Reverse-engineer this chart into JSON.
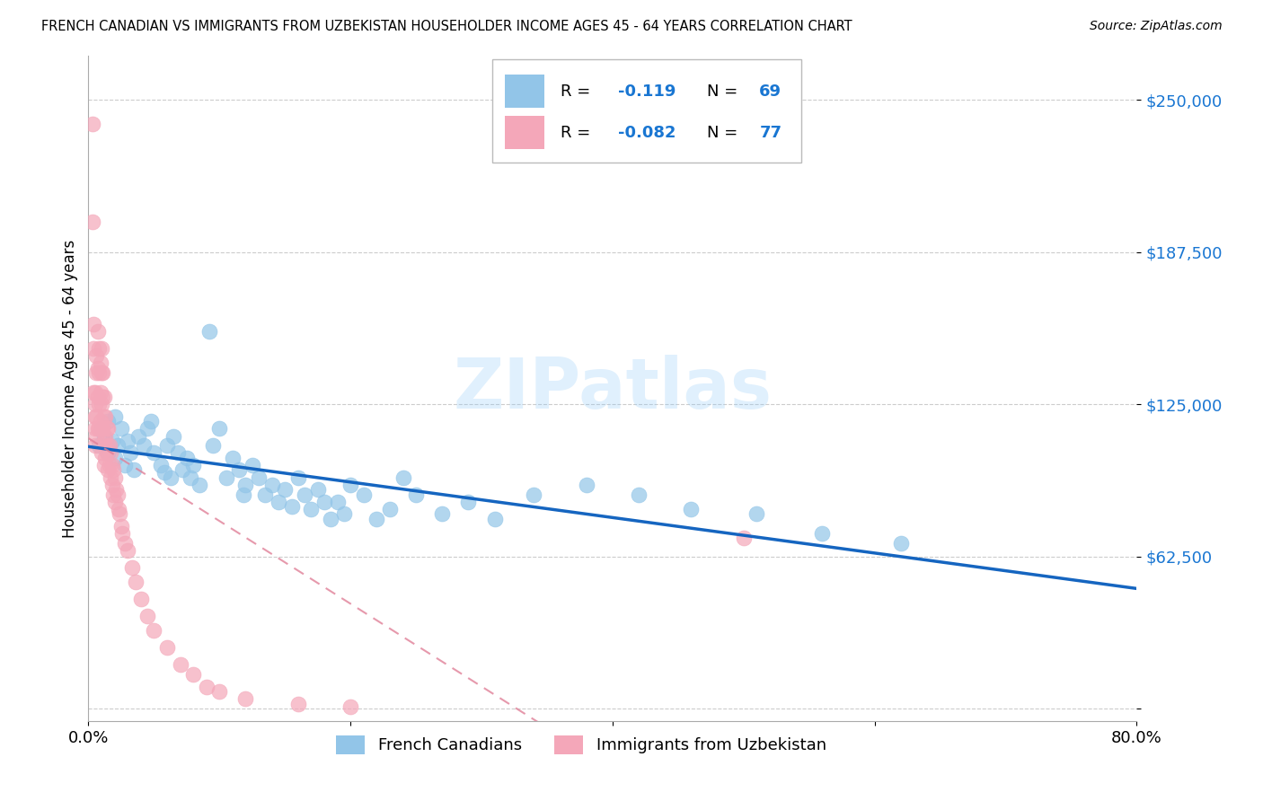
{
  "title": "FRENCH CANADIAN VS IMMIGRANTS FROM UZBEKISTAN HOUSEHOLDER INCOME AGES 45 - 64 YEARS CORRELATION CHART",
  "source": "Source: ZipAtlas.com",
  "ylabel": "Householder Income Ages 45 - 64 years",
  "y_ticks": [
    0,
    62500,
    125000,
    187500,
    250000
  ],
  "y_tick_labels": [
    "",
    "$62,500",
    "$125,000",
    "$187,500",
    "$250,000"
  ],
  "x_min": 0.0,
  "x_max": 0.8,
  "y_min": -5000,
  "y_max": 268000,
  "blue_color": "#92c5e8",
  "pink_color": "#f4a7b9",
  "line_blue": "#1565C0",
  "line_pink": "#e08098",
  "watermark": "ZIPatlas",
  "fc_x": [
    0.008,
    0.01,
    0.012,
    0.015,
    0.015,
    0.018,
    0.02,
    0.02,
    0.022,
    0.025,
    0.028,
    0.03,
    0.032,
    0.035,
    0.038,
    0.042,
    0.045,
    0.048,
    0.05,
    0.055,
    0.058,
    0.06,
    0.063,
    0.065,
    0.068,
    0.072,
    0.075,
    0.078,
    0.08,
    0.085,
    0.092,
    0.095,
    0.1,
    0.105,
    0.11,
    0.115,
    0.118,
    0.12,
    0.125,
    0.13,
    0.135,
    0.14,
    0.145,
    0.15,
    0.155,
    0.16,
    0.165,
    0.17,
    0.175,
    0.18,
    0.185,
    0.19,
    0.195,
    0.2,
    0.21,
    0.22,
    0.23,
    0.24,
    0.25,
    0.27,
    0.29,
    0.31,
    0.34,
    0.38,
    0.42,
    0.46,
    0.51,
    0.56,
    0.62
  ],
  "fc_y": [
    108000,
    115000,
    112000,
    105000,
    118000,
    110000,
    103000,
    120000,
    108000,
    115000,
    100000,
    110000,
    105000,
    98000,
    112000,
    108000,
    115000,
    118000,
    105000,
    100000,
    97000,
    108000,
    95000,
    112000,
    105000,
    98000,
    103000,
    95000,
    100000,
    92000,
    155000,
    108000,
    115000,
    95000,
    103000,
    98000,
    88000,
    92000,
    100000,
    95000,
    88000,
    92000,
    85000,
    90000,
    83000,
    95000,
    88000,
    82000,
    90000,
    85000,
    78000,
    85000,
    80000,
    92000,
    88000,
    78000,
    82000,
    95000,
    88000,
    80000,
    85000,
    78000,
    88000,
    92000,
    88000,
    82000,
    80000,
    72000,
    68000
  ],
  "uz_x": [
    0.003,
    0.003,
    0.004,
    0.004,
    0.004,
    0.005,
    0.005,
    0.005,
    0.005,
    0.005,
    0.006,
    0.006,
    0.006,
    0.006,
    0.007,
    0.007,
    0.007,
    0.007,
    0.008,
    0.008,
    0.008,
    0.008,
    0.009,
    0.009,
    0.009,
    0.01,
    0.01,
    0.01,
    0.01,
    0.01,
    0.011,
    0.011,
    0.011,
    0.012,
    0.012,
    0.012,
    0.012,
    0.013,
    0.013,
    0.013,
    0.014,
    0.014,
    0.015,
    0.015,
    0.015,
    0.016,
    0.016,
    0.017,
    0.017,
    0.018,
    0.018,
    0.019,
    0.019,
    0.02,
    0.02,
    0.021,
    0.022,
    0.023,
    0.024,
    0.025,
    0.026,
    0.028,
    0.03,
    0.033,
    0.036,
    0.04,
    0.045,
    0.05,
    0.06,
    0.07,
    0.08,
    0.09,
    0.1,
    0.12,
    0.16,
    0.2,
    0.5
  ],
  "uz_y": [
    240000,
    200000,
    158000,
    148000,
    130000,
    130000,
    125000,
    120000,
    115000,
    108000,
    145000,
    138000,
    120000,
    112000,
    155000,
    140000,
    128000,
    115000,
    148000,
    138000,
    125000,
    115000,
    142000,
    130000,
    118000,
    148000,
    138000,
    125000,
    115000,
    105000,
    138000,
    128000,
    115000,
    128000,
    120000,
    110000,
    100000,
    120000,
    112000,
    103000,
    115000,
    105000,
    115000,
    108000,
    98000,
    108000,
    100000,
    105000,
    95000,
    100000,
    92000,
    98000,
    88000,
    95000,
    85000,
    90000,
    88000,
    82000,
    80000,
    75000,
    72000,
    68000,
    65000,
    58000,
    52000,
    45000,
    38000,
    32000,
    25000,
    18000,
    14000,
    9000,
    7000,
    4000,
    2000,
    1000,
    70000
  ]
}
